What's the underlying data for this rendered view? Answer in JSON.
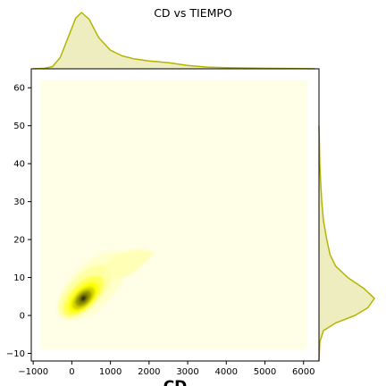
{
  "chart_data": {
    "type": "joint-kde",
    "title": "CD vs TIEMPO",
    "xlabel": "CD",
    "ylabel": "",
    "xlim": [
      -1050,
      6400
    ],
    "ylim": [
      -12,
      65
    ],
    "x_ticks": [
      -1000,
      0,
      1000,
      2000,
      3000,
      4000,
      5000,
      6000
    ],
    "y_ticks": [
      -10,
      0,
      10,
      20,
      30,
      40,
      50,
      60
    ],
    "grid": false,
    "legend": "none",
    "colors": {
      "marginal_line": "#b5b500",
      "marginal_fill": "#ededbf",
      "density_background": "#fffee6",
      "density_low": "#ffffa0",
      "density_mid": "#ffff00",
      "density_high": "#7a7a00",
      "density_peak": "#202010"
    },
    "density_region": {
      "x": [
        -800,
        6100
      ],
      "y": [
        -9,
        62
      ]
    },
    "kde_peak": {
      "x": 300,
      "y": 4.5
    },
    "marginal_x": {
      "points": [
        [
          -1000,
          0.0
        ],
        [
          -700,
          0.01
        ],
        [
          -500,
          0.04
        ],
        [
          -300,
          0.2
        ],
        [
          -100,
          0.55
        ],
        [
          100,
          0.9
        ],
        [
          250,
          1.0
        ],
        [
          450,
          0.88
        ],
        [
          700,
          0.55
        ],
        [
          1000,
          0.33
        ],
        [
          1300,
          0.23
        ],
        [
          1600,
          0.18
        ],
        [
          2000,
          0.14
        ],
        [
          2500,
          0.11
        ],
        [
          3000,
          0.06
        ],
        [
          3500,
          0.03
        ],
        [
          4000,
          0.02
        ],
        [
          5000,
          0.01
        ],
        [
          6000,
          0.005
        ],
        [
          6300,
          0.0
        ]
      ]
    },
    "marginal_y": {
      "points": [
        [
          -12,
          0.0
        ],
        [
          -7,
          0.015
        ],
        [
          -4,
          0.08
        ],
        [
          -2,
          0.3
        ],
        [
          0,
          0.65
        ],
        [
          2,
          0.88
        ],
        [
          4.5,
          1.0
        ],
        [
          7,
          0.82
        ],
        [
          10,
          0.52
        ],
        [
          13,
          0.3
        ],
        [
          16,
          0.2
        ],
        [
          20,
          0.14
        ],
        [
          25,
          0.08
        ],
        [
          30,
          0.05
        ],
        [
          35,
          0.03
        ],
        [
          40,
          0.015
        ],
        [
          45,
          0.008
        ],
        [
          50,
          0.0
        ]
      ]
    }
  }
}
